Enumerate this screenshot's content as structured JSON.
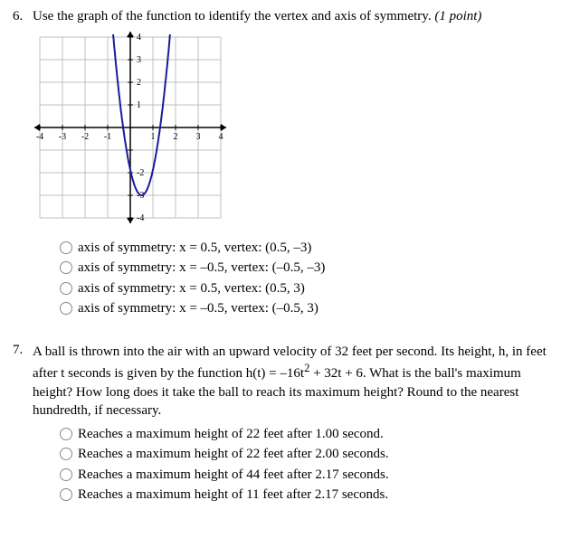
{
  "q6": {
    "number": "6.",
    "prompt_pre": "Use the graph of the function to identify the vertex and axis of symmetry. ",
    "prompt_points": "(1 point)",
    "options": [
      "axis of symmetry: x = 0.5,  vertex: (0.5, –3)",
      "axis of symmetry: x = –0.5,  vertex: (–0.5, –3)",
      "axis of symmetry: x = 0.5,  vertex: (0.5, 3)",
      "axis of symmetry: x = –0.5,  vertex: (–0.5, 3)"
    ],
    "graph": {
      "xlim": [
        -4,
        4
      ],
      "ylim": [
        -4,
        4
      ],
      "xtick_step": 1,
      "ytick_step": 1,
      "xtick_labels": [
        "-4",
        "-3",
        "-2",
        "-1",
        "",
        "1",
        "2",
        "3",
        "4"
      ],
      "ytick_labels": [
        "-4",
        "-3",
        "-2",
        "",
        "1",
        "2",
        "3",
        "4"
      ],
      "grid_color": "#bfbfbf",
      "axis_color": "#000000",
      "curve_color": "#1a1a9e",
      "curve_width": 2,
      "background": "#ffffff",
      "parabola_vertex": [
        0.5,
        -3
      ],
      "parabola_a": 4.5
    }
  },
  "q7": {
    "number": "7.",
    "prompt_l1": "A ball is thrown into the air with an upward velocity of 32 feet per second. Its height, h, in feet",
    "prompt_l2a": "after t seconds is given by the function h(t) = –16t",
    "prompt_l2_sup": "2",
    "prompt_l2b": " + 32t + 6. What is the ball's maximum",
    "prompt_l3": "height? How long does it take the ball to reach its maximum height?  Round to the nearest",
    "prompt_l4": "hundredth, if necessary.",
    "options": [
      "Reaches a maximum height of 22 feet after 1.00 second.",
      "Reaches a maximum height of 22 feet after 2.00 seconds.",
      "Reaches a maximum height of 44 feet after 2.17 seconds.",
      "Reaches a maximum height of 11 feet after 2.17 seconds."
    ]
  }
}
